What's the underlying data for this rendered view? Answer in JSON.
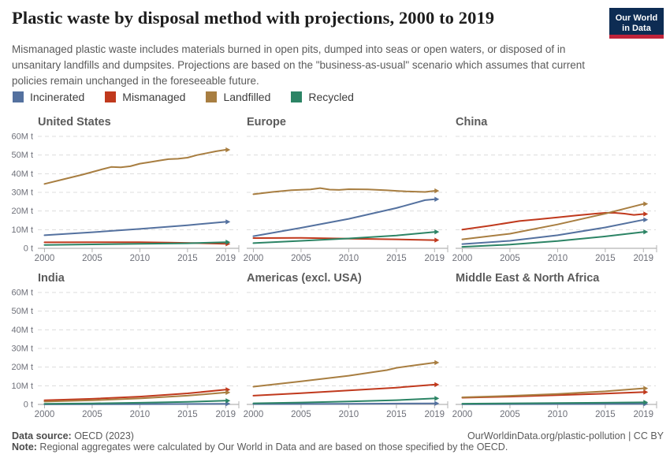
{
  "header": {
    "title": "Plastic waste by disposal method with projections, 2000 to 2019",
    "logo_line1": "Our World",
    "logo_line2": "in Data",
    "logo_bg": "#0d2c53",
    "logo_stripe": "#c0233a"
  },
  "subtitle": "Mismanaged plastic waste includes materials burned in open pits, dumped into seas or open waters, or disposed of in unsanitary landfills and dumpsites. Projections are based on the \"business-as-usual\" scenario which assumes that current policies remain unchanged in the foreseeable future.",
  "legend": [
    {
      "label": "Incinerated",
      "color": "#54719F"
    },
    {
      "label": "Mismanaged",
      "color": "#C0391D"
    },
    {
      "label": "Landfilled",
      "color": "#A87E41"
    },
    {
      "label": "Recycled",
      "color": "#2C8465"
    }
  ],
  "chart_data": {
    "type": "line",
    "title": "Plastic waste by disposal method with projections, 2000 to 2019",
    "unit": "million tonnes",
    "xlim": [
      2000,
      2019
    ],
    "ylim": [
      0,
      60
    ],
    "x_ticks": [
      "2000",
      "2005",
      "2010",
      "2015",
      "2019"
    ],
    "x_tick_years": [
      2000,
      2005,
      2010,
      2015,
      2019
    ],
    "y_ticks": [
      "60M t",
      "50M t",
      "40M t",
      "30M t",
      "20M t",
      "10M t",
      "0 t"
    ],
    "y_tick_values": [
      60,
      50,
      40,
      30,
      20,
      10,
      0
    ],
    "grid": "dashed-horizontal",
    "legend_position": "top-left",
    "regions": [
      {
        "name": "United States",
        "series": [
          {
            "name": "Incinerated",
            "points": [
              [
                2000,
                7
              ],
              [
                2005,
                8.6
              ],
              [
                2010,
                10.4
              ],
              [
                2015,
                12.4
              ],
              [
                2019,
                14.2
              ]
            ]
          },
          {
            "name": "Mismanaged",
            "points": [
              [
                2000,
                3.2
              ],
              [
                2005,
                3.3
              ],
              [
                2010,
                3.3
              ],
              [
                2013,
                3.1
              ],
              [
                2016,
                2.8
              ],
              [
                2019,
                2.4
              ]
            ]
          },
          {
            "name": "Landfilled",
            "points": [
              [
                2000,
                34.5
              ],
              [
                2002,
                37
              ],
              [
                2004,
                39.5
              ],
              [
                2006,
                42.3
              ],
              [
                2007,
                43.6
              ],
              [
                2008,
                43.4
              ],
              [
                2009,
                44
              ],
              [
                2010,
                45.4
              ],
              [
                2011,
                46.2
              ],
              [
                2012,
                47
              ],
              [
                2013,
                47.8
              ],
              [
                2014,
                48
              ],
              [
                2015,
                48.6
              ],
              [
                2016,
                50
              ],
              [
                2017,
                51
              ],
              [
                2018,
                52
              ],
              [
                2019,
                52.8
              ]
            ]
          },
          {
            "name": "Recycled",
            "points": [
              [
                2000,
                1.8
              ],
              [
                2005,
                2.1
              ],
              [
                2010,
                2.4
              ],
              [
                2015,
                2.7
              ],
              [
                2019,
                3.3
              ]
            ]
          }
        ]
      },
      {
        "name": "Europe",
        "series": [
          {
            "name": "Incinerated",
            "points": [
              [
                2000,
                6.5
              ],
              [
                2005,
                11
              ],
              [
                2010,
                15.8
              ],
              [
                2015,
                21.6
              ],
              [
                2018,
                25.8
              ],
              [
                2019,
                26.3
              ]
            ]
          },
          {
            "name": "Mismanaged",
            "points": [
              [
                2000,
                5.5
              ],
              [
                2005,
                5.6
              ],
              [
                2010,
                5.2
              ],
              [
                2015,
                4.8
              ],
              [
                2019,
                4.4
              ]
            ]
          },
          {
            "name": "Landfilled",
            "points": [
              [
                2000,
                29
              ],
              [
                2002,
                30.2
              ],
              [
                2004,
                31.2
              ],
              [
                2006,
                31.6
              ],
              [
                2007,
                32.3
              ],
              [
                2008,
                31.5
              ],
              [
                2009,
                31.3
              ],
              [
                2010,
                31.7
              ],
              [
                2012,
                31.6
              ],
              [
                2014,
                31.1
              ],
              [
                2016,
                30.5
              ],
              [
                2018,
                30.2
              ],
              [
                2019,
                30.8
              ]
            ]
          },
          {
            "name": "Recycled",
            "points": [
              [
                2000,
                2.8
              ],
              [
                2005,
                4
              ],
              [
                2010,
                5.3
              ],
              [
                2015,
                6.9
              ],
              [
                2019,
                8.8
              ]
            ]
          }
        ]
      },
      {
        "name": "China",
        "series": [
          {
            "name": "Incinerated",
            "points": [
              [
                2000,
                2.3
              ],
              [
                2005,
                4
              ],
              [
                2010,
                7
              ],
              [
                2015,
                11.2
              ],
              [
                2019,
                15.3
              ]
            ]
          },
          {
            "name": "Mismanaged",
            "points": [
              [
                2000,
                10
              ],
              [
                2003,
                12.2
              ],
              [
                2006,
                14.6
              ],
              [
                2008,
                15.6
              ],
              [
                2010,
                16.6
              ],
              [
                2012,
                17.6
              ],
              [
                2014,
                18.6
              ],
              [
                2015,
                19
              ],
              [
                2016,
                19
              ],
              [
                2017,
                18.6
              ],
              [
                2018,
                17.9
              ],
              [
                2019,
                18.4
              ]
            ]
          },
          {
            "name": "Landfilled",
            "points": [
              [
                2000,
                4.8
              ],
              [
                2005,
                7.8
              ],
              [
                2010,
                12.8
              ],
              [
                2015,
                18.6
              ],
              [
                2017,
                21.2
              ],
              [
                2019,
                23.8
              ]
            ]
          },
          {
            "name": "Recycled",
            "points": [
              [
                2000,
                0.8
              ],
              [
                2005,
                2
              ],
              [
                2010,
                3.9
              ],
              [
                2015,
                6.4
              ],
              [
                2019,
                8.8
              ]
            ]
          }
        ]
      },
      {
        "name": "India",
        "series": [
          {
            "name": "Incinerated",
            "points": [
              [
                2000,
                0.05
              ],
              [
                2010,
                0.15
              ],
              [
                2019,
                0.35
              ]
            ]
          },
          {
            "name": "Mismanaged",
            "points": [
              [
                2000,
                2.2
              ],
              [
                2005,
                3
              ],
              [
                2010,
                4.2
              ],
              [
                2015,
                5.9
              ],
              [
                2019,
                7.9
              ]
            ]
          },
          {
            "name": "Landfilled",
            "points": [
              [
                2000,
                1.5
              ],
              [
                2005,
                2.2
              ],
              [
                2010,
                3.2
              ],
              [
                2015,
                4.7
              ],
              [
                2019,
                6.4
              ]
            ]
          },
          {
            "name": "Recycled",
            "points": [
              [
                2000,
                0.3
              ],
              [
                2005,
                0.55
              ],
              [
                2010,
                0.9
              ],
              [
                2015,
                1.4
              ],
              [
                2019,
                2
              ]
            ]
          }
        ]
      },
      {
        "name": "Americas (excl. USA)",
        "series": [
          {
            "name": "Incinerated",
            "points": [
              [
                2000,
                0.2
              ],
              [
                2010,
                0.35
              ],
              [
                2019,
                0.55
              ]
            ]
          },
          {
            "name": "Mismanaged",
            "points": [
              [
                2000,
                4.7
              ],
              [
                2005,
                6
              ],
              [
                2010,
                7.5
              ],
              [
                2015,
                9
              ],
              [
                2019,
                10.6
              ]
            ]
          },
          {
            "name": "Landfilled",
            "points": [
              [
                2000,
                9.5
              ],
              [
                2005,
                12.4
              ],
              [
                2010,
                15.4
              ],
              [
                2013,
                17.6
              ],
              [
                2014,
                18.4
              ],
              [
                2015,
                19.6
              ],
              [
                2017,
                21
              ],
              [
                2019,
                22.4
              ]
            ]
          },
          {
            "name": "Recycled",
            "points": [
              [
                2000,
                0.6
              ],
              [
                2005,
                1
              ],
              [
                2010,
                1.6
              ],
              [
                2015,
                2.3
              ],
              [
                2019,
                3.2
              ]
            ]
          }
        ]
      },
      {
        "name": "Middle East & North Africa",
        "series": [
          {
            "name": "Incinerated",
            "points": [
              [
                2000,
                0.12
              ],
              [
                2010,
                0.2
              ],
              [
                2019,
                0.3
              ]
            ]
          },
          {
            "name": "Mismanaged",
            "points": [
              [
                2000,
                3.6
              ],
              [
                2005,
                4.2
              ],
              [
                2010,
                5
              ],
              [
                2015,
                5.8
              ],
              [
                2019,
                6.6
              ]
            ]
          },
          {
            "name": "Landfilled",
            "points": [
              [
                2000,
                3.8
              ],
              [
                2005,
                4.6
              ],
              [
                2010,
                5.6
              ],
              [
                2015,
                7
              ],
              [
                2019,
                8.6
              ]
            ]
          },
          {
            "name": "Recycled",
            "points": [
              [
                2000,
                0.4
              ],
              [
                2010,
                0.7
              ],
              [
                2019,
                1.1
              ]
            ]
          }
        ]
      }
    ]
  },
  "footer": {
    "source_label": "Data source:",
    "source_value": " OECD (2023)",
    "link": "OurWorldinData.org/plastic-pollution",
    "license": " | CC BY",
    "note_label": "Note:",
    "note_text": " Regional aggregates were calculated by Our World in Data and are based on those specified by the OECD."
  }
}
